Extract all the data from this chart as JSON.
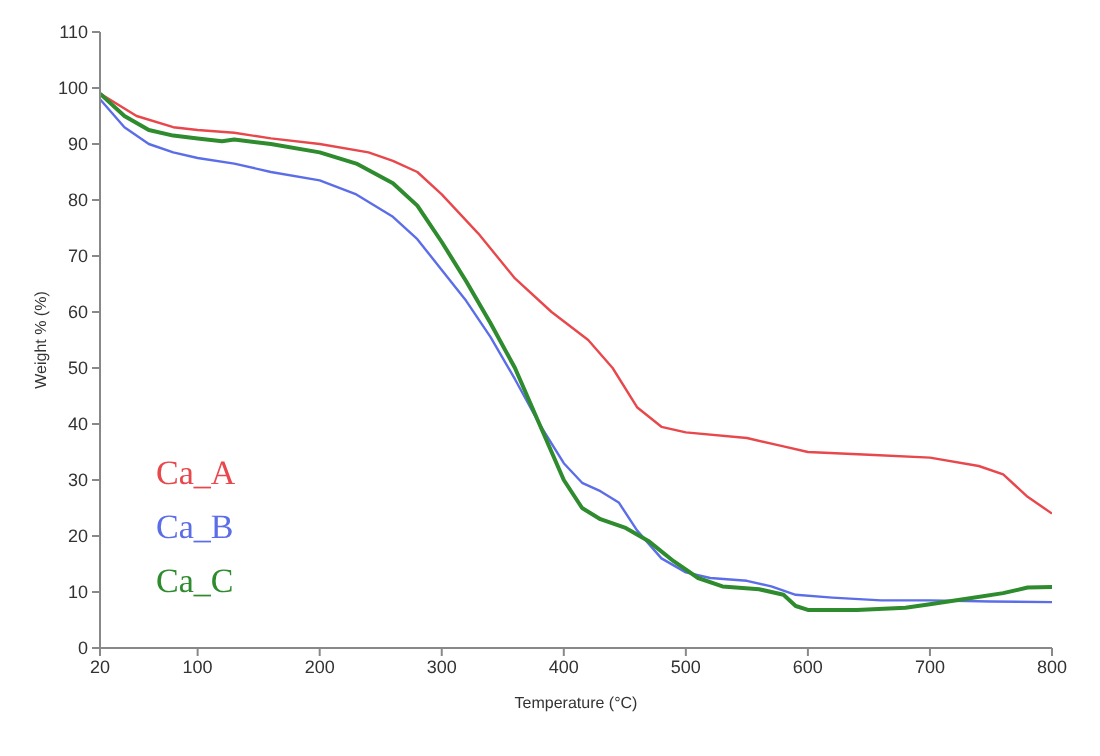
{
  "chart_data": {
    "type": "line",
    "xlabel": "Temperature (°C)",
    "ylabel": "Weight % (%)",
    "xlim": [
      20,
      800
    ],
    "xticks": [
      20,
      100,
      200,
      300,
      400,
      500,
      600,
      700,
      800
    ],
    "ylim": [
      0,
      110
    ],
    "yticks": [
      0,
      10,
      20,
      30,
      40,
      50,
      60,
      70,
      80,
      90,
      100,
      110
    ],
    "grid": false,
    "legend": "left",
    "marker": "none",
    "line_style": "solid",
    "series": [
      {
        "name": "Ca_A",
        "color": "#e8474b",
        "x": [
          20,
          50,
          80,
          100,
          130,
          160,
          200,
          240,
          260,
          280,
          300,
          330,
          360,
          390,
          420,
          440,
          460,
          480,
          500,
          550,
          580,
          600,
          650,
          700,
          740,
          760,
          780,
          800
        ],
        "values": [
          99,
          95,
          93,
          92.5,
          92,
          91,
          90,
          88.5,
          87,
          85,
          81,
          74,
          66,
          60,
          55,
          50,
          43,
          39.5,
          38.5,
          37.5,
          36,
          35,
          34.5,
          34,
          32.5,
          31,
          27,
          24
        ]
      },
      {
        "name": "Ca_B",
        "color": "#5b6ee8",
        "x": [
          20,
          40,
          60,
          80,
          100,
          130,
          160,
          200,
          230,
          260,
          280,
          300,
          320,
          340,
          360,
          380,
          400,
          415,
          430,
          445,
          460,
          480,
          500,
          520,
          550,
          570,
          590,
          620,
          660,
          700,
          750,
          800
        ],
        "values": [
          98,
          93,
          90,
          88.5,
          87.5,
          86.5,
          85,
          83.5,
          81,
          77,
          73,
          67.5,
          62,
          55.5,
          48,
          40,
          33,
          29.5,
          28,
          26,
          21,
          16,
          13.5,
          12.5,
          12,
          11,
          9.5,
          9,
          8.5,
          8.5,
          8.3,
          8.2
        ]
      },
      {
        "name": "Ca_C",
        "color": "#2e8b2e",
        "x": [
          20,
          40,
          60,
          80,
          100,
          120,
          130,
          160,
          200,
          230,
          260,
          280,
          300,
          320,
          340,
          360,
          380,
          400,
          415,
          430,
          450,
          470,
          490,
          510,
          530,
          560,
          580,
          590,
          600,
          640,
          680,
          700,
          730,
          760,
          780,
          800
        ],
        "values": [
          99,
          95,
          92.5,
          91.5,
          91,
          90.5,
          90.8,
          90,
          88.5,
          86.5,
          83,
          79,
          72.5,
          65.5,
          58,
          50,
          40,
          30,
          25,
          23,
          21.5,
          19,
          15.5,
          12.5,
          11,
          10.5,
          9.5,
          7.5,
          6.8,
          6.8,
          7.2,
          7.8,
          8.8,
          9.8,
          10.8,
          10.9
        ]
      }
    ]
  }
}
